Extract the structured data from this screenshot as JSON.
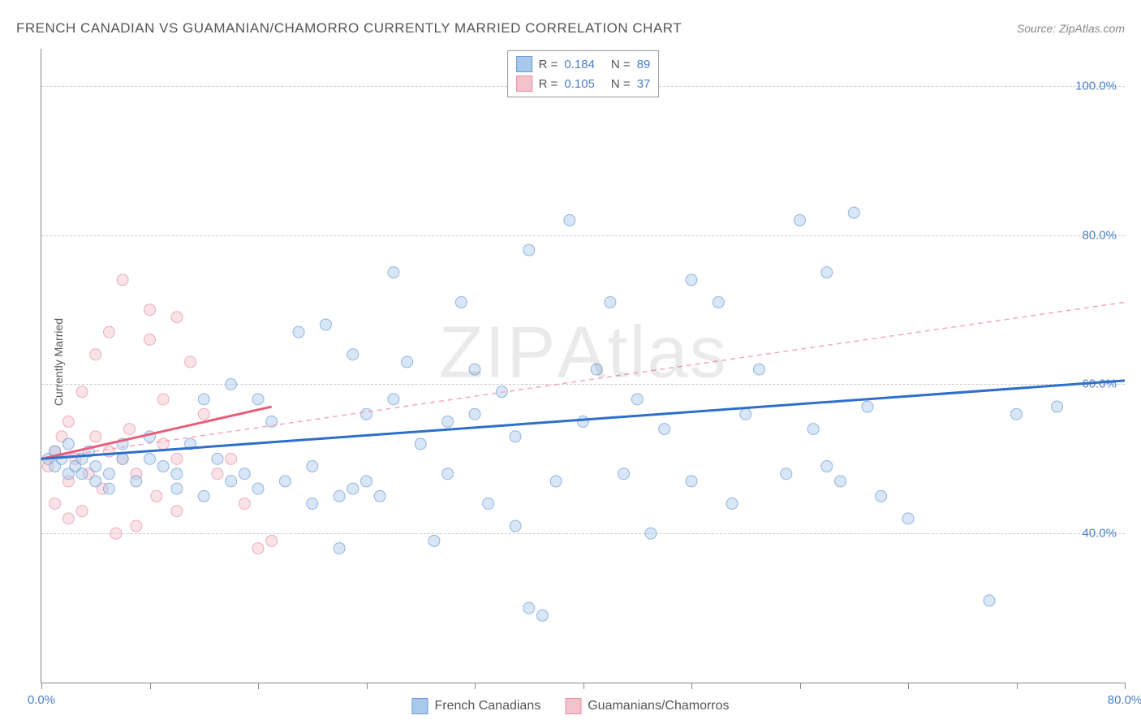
{
  "title": "FRENCH CANADIAN VS GUAMANIAN/CHAMORRO CURRENTLY MARRIED CORRELATION CHART",
  "source": "Source: ZipAtlas.com",
  "y_axis_label": "Currently Married",
  "watermark": "ZIPAtlas",
  "chart": {
    "type": "scatter",
    "xlim": [
      0,
      80
    ],
    "ylim": [
      20,
      105
    ],
    "x_ticks": [
      0,
      8,
      16,
      24,
      32,
      40,
      48,
      56,
      64,
      72,
      80
    ],
    "x_tick_labels": {
      "0": "0.0%",
      "80": "80.0%"
    },
    "y_gridlines": [
      40,
      60,
      80,
      100
    ],
    "y_tick_labels": {
      "40": "40.0%",
      "60": "60.0%",
      "80": "80.0%",
      "100": "100.0%"
    },
    "background_color": "#ffffff",
    "grid_color": "#cccccc",
    "axis_color": "#888888",
    "tick_label_color": "#4a7fc9",
    "marker_radius": 7,
    "marker_opacity": 0.45,
    "series": [
      {
        "name": "French Canadians",
        "color_fill": "#a8c8ec",
        "color_stroke": "#6b9bd6",
        "r_value": "0.184",
        "n_value": "89",
        "trend_solid": {
          "x1": 0,
          "y1": 50,
          "x2": 80,
          "y2": 60.5,
          "color": "#2e6fc9",
          "width": 3
        },
        "trend_dashed": {
          "x1": 0,
          "y1": 50,
          "x2": 80,
          "y2": 71,
          "color": "#f5a8b8",
          "width": 1.5
        },
        "points": [
          [
            0.5,
            50
          ],
          [
            1,
            49
          ],
          [
            1,
            51
          ],
          [
            1.5,
            50
          ],
          [
            2,
            48
          ],
          [
            2,
            52
          ],
          [
            2.5,
            49
          ],
          [
            3,
            48
          ],
          [
            3,
            50
          ],
          [
            3.5,
            51
          ],
          [
            4,
            47
          ],
          [
            4,
            49
          ],
          [
            5,
            48
          ],
          [
            5,
            46
          ],
          [
            6,
            50
          ],
          [
            6,
            52
          ],
          [
            7,
            47
          ],
          [
            8,
            50
          ],
          [
            8,
            53
          ],
          [
            9,
            49
          ],
          [
            10,
            46
          ],
          [
            10,
            48
          ],
          [
            11,
            52
          ],
          [
            12,
            45
          ],
          [
            12,
            58
          ],
          [
            13,
            50
          ],
          [
            14,
            47
          ],
          [
            14,
            60
          ],
          [
            15,
            48
          ],
          [
            16,
            58
          ],
          [
            16,
            46
          ],
          [
            17,
            55
          ],
          [
            18,
            47
          ],
          [
            19,
            67
          ],
          [
            20,
            44
          ],
          [
            20,
            49
          ],
          [
            21,
            68
          ],
          [
            22,
            38
          ],
          [
            22,
            45
          ],
          [
            23,
            64
          ],
          [
            23,
            46
          ],
          [
            24,
            47
          ],
          [
            24,
            56
          ],
          [
            25,
            45
          ],
          [
            26,
            75
          ],
          [
            26,
            58
          ],
          [
            27,
            63
          ],
          [
            28,
            52
          ],
          [
            29,
            39
          ],
          [
            30,
            48
          ],
          [
            30,
            55
          ],
          [
            31,
            71
          ],
          [
            32,
            62
          ],
          [
            32,
            56
          ],
          [
            33,
            44
          ],
          [
            34,
            59
          ],
          [
            35,
            41
          ],
          [
            35,
            53
          ],
          [
            36,
            78
          ],
          [
            36,
            30
          ],
          [
            37,
            29
          ],
          [
            38,
            47
          ],
          [
            39,
            82
          ],
          [
            40,
            55
          ],
          [
            41,
            62
          ],
          [
            42,
            71
          ],
          [
            43,
            48
          ],
          [
            44,
            58
          ],
          [
            45,
            40
          ],
          [
            46,
            54
          ],
          [
            48,
            74
          ],
          [
            48,
            47
          ],
          [
            50,
            71
          ],
          [
            51,
            44
          ],
          [
            52,
            56
          ],
          [
            53,
            62
          ],
          [
            55,
            48
          ],
          [
            56,
            82
          ],
          [
            57,
            54
          ],
          [
            58,
            49
          ],
          [
            58,
            75
          ],
          [
            59,
            47
          ],
          [
            60,
            83
          ],
          [
            61,
            57
          ],
          [
            62,
            45
          ],
          [
            64,
            42
          ],
          [
            70,
            31
          ],
          [
            72,
            56
          ],
          [
            75,
            57
          ]
        ]
      },
      {
        "name": "Guamanians/Chamorros",
        "color_fill": "#f5c2cc",
        "color_stroke": "#e690a5",
        "r_value": "0.105",
        "n_value": "37",
        "trend_solid": {
          "x1": 0,
          "y1": 50,
          "x2": 17,
          "y2": 57,
          "color": "#e85d7a",
          "width": 3
        },
        "points": [
          [
            0.5,
            49
          ],
          [
            1,
            44
          ],
          [
            1,
            51
          ],
          [
            1.5,
            53
          ],
          [
            2,
            47
          ],
          [
            2,
            42
          ],
          [
            2,
            55
          ],
          [
            2.5,
            50
          ],
          [
            3,
            43
          ],
          [
            3,
            59
          ],
          [
            3.5,
            48
          ],
          [
            4,
            64
          ],
          [
            4,
            53
          ],
          [
            4.5,
            46
          ],
          [
            5,
            67
          ],
          [
            5,
            51
          ],
          [
            5.5,
            40
          ],
          [
            6,
            50
          ],
          [
            6,
            74
          ],
          [
            6.5,
            54
          ],
          [
            7,
            41
          ],
          [
            7,
            48
          ],
          [
            8,
            70
          ],
          [
            8,
            66
          ],
          [
            8.5,
            45
          ],
          [
            9,
            52
          ],
          [
            9,
            58
          ],
          [
            10,
            69
          ],
          [
            10,
            50
          ],
          [
            10,
            43
          ],
          [
            11,
            63
          ],
          [
            12,
            56
          ],
          [
            13,
            48
          ],
          [
            14,
            50
          ],
          [
            15,
            44
          ],
          [
            16,
            38
          ],
          [
            17,
            39
          ]
        ]
      }
    ]
  },
  "legend_bottom": [
    {
      "label": "French Canadians",
      "fill": "#a8c8ec",
      "stroke": "#6b9bd6"
    },
    {
      "label": "Guamanians/Chamorros",
      "fill": "#f5c2cc",
      "stroke": "#e690a5"
    }
  ]
}
